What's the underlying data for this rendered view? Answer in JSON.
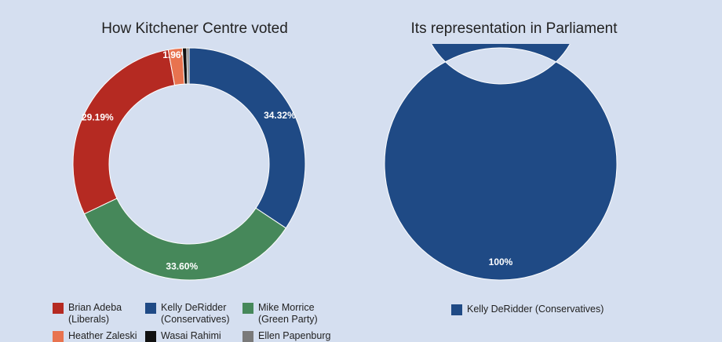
{
  "chart_data": [
    {
      "type": "pie",
      "title": "How Kitchener Centre voted",
      "slices": [
        {
          "name": "Kelly DeRidder (Conservatives)",
          "value": 34.32,
          "label": "34.32%",
          "color": "#1f4a85"
        },
        {
          "name": "Mike Morrice (Green Party)",
          "value": 33.6,
          "label": "33.60%",
          "color": "#46885a"
        },
        {
          "name": "Brian Adeba (Liberals)",
          "value": 29.19,
          "label": "29.19%",
          "color": "#b52a22"
        },
        {
          "name": "Heather Zaleski",
          "value": 1.96,
          "label": "1.96%",
          "color": "#e8734f"
        },
        {
          "name": "Wasai Rahimi",
          "value": 0.6,
          "label": "",
          "color": "#111111"
        },
        {
          "name": "Ellen Papenburg",
          "value": 0.33,
          "label": "",
          "color": "#7a7a7a"
        }
      ],
      "legend_visible": [
        {
          "line1": "Brian Adeba",
          "line2": "(Liberals)",
          "color": "#b52a22"
        },
        {
          "line1": "Kelly DeRidder",
          "line2": "(Conservatives)",
          "color": "#1f4a85"
        },
        {
          "line1": "Mike Morrice",
          "line2": "(Green Party)",
          "color": "#46885a"
        },
        {
          "line1": "Heather Zaleski",
          "line2": "",
          "color": "#e8734f"
        },
        {
          "line1": "Wasai Rahimi",
          "line2": "",
          "color": "#111111"
        },
        {
          "line1": "Ellen Papenburg",
          "line2": "",
          "color": "#7a7a7a"
        }
      ]
    },
    {
      "type": "pie",
      "title": "Its representation in Parliament",
      "slices": [
        {
          "name": "Kelly DeRidder (Conservatives)",
          "value": 100,
          "label": "100%",
          "color": "#1f4a85"
        }
      ],
      "legend_visible": [
        {
          "line1": "Kelly DeRidder (Conservatives)",
          "line2": "",
          "color": "#1f4a85"
        }
      ]
    }
  ]
}
